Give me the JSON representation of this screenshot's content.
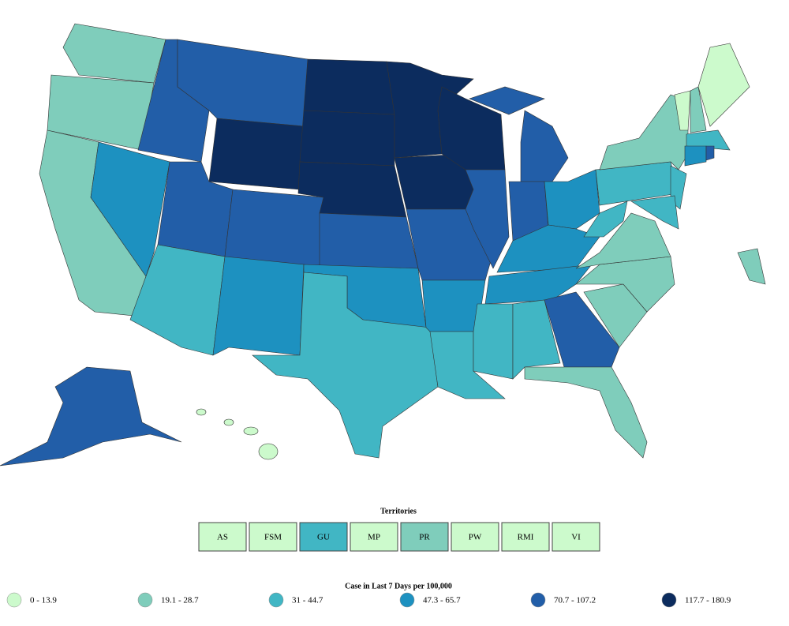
{
  "territories": {
    "title": "Territories",
    "items": [
      {
        "label": "AS",
        "color": "#ccfacc"
      },
      {
        "label": "FSM",
        "color": "#ccfacc"
      },
      {
        "label": "GU",
        "color": "#41b6c4"
      },
      {
        "label": "MP",
        "color": "#ccfacc"
      },
      {
        "label": "PR",
        "color": "#7fcdbb"
      },
      {
        "label": "PW",
        "color": "#ccfacc"
      },
      {
        "label": "RMI",
        "color": "#ccfacc"
      },
      {
        "label": "VI",
        "color": "#ccfacc"
      }
    ]
  },
  "legend": {
    "title": "Case in Last 7 Days per 100,000",
    "items": [
      {
        "label": "0 - 13.9",
        "color": "#ccfacc"
      },
      {
        "label": "19.1 - 28.7",
        "color": "#7fcdbb"
      },
      {
        "label": "31 - 44.7",
        "color": "#41b6c4"
      },
      {
        "label": "47.3 - 65.7",
        "color": "#1d91c0"
      },
      {
        "label": "70.7 - 107.2",
        "color": "#225ea8"
      },
      {
        "label": "117.7 - 180.9",
        "color": "#0c2c5e"
      }
    ]
  }
}
